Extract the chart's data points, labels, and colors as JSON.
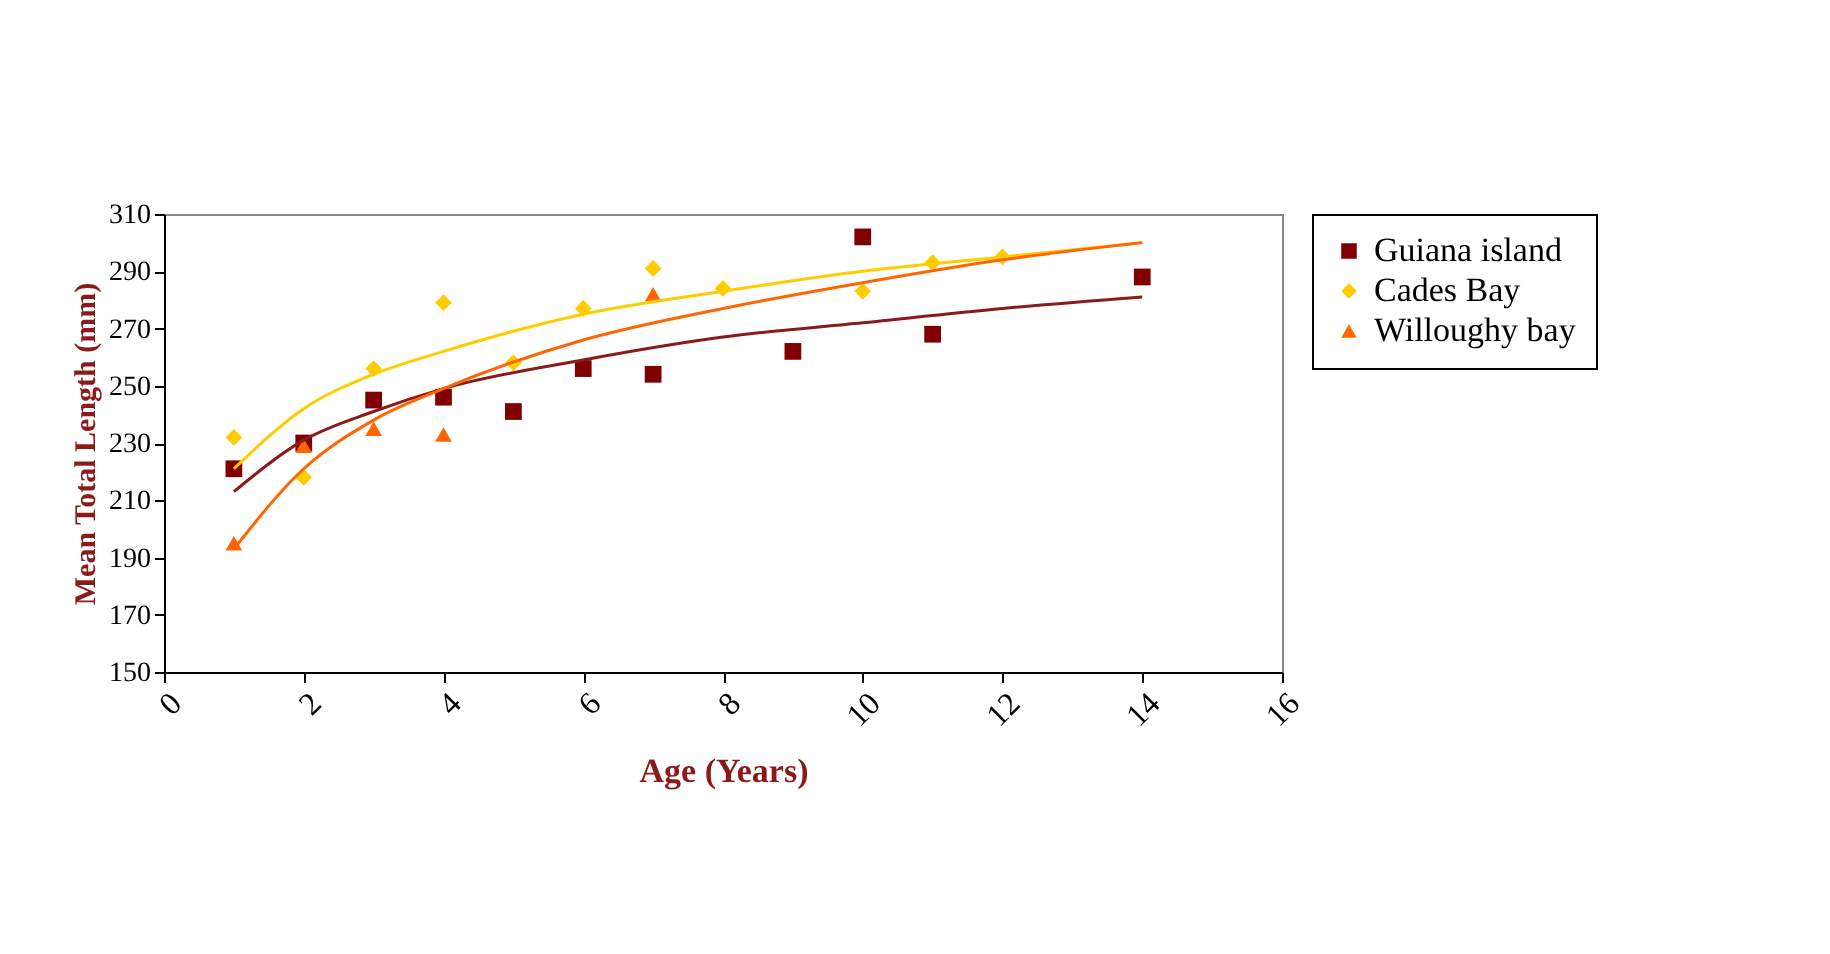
{
  "chart_data": {
    "type": "scatter",
    "xlabel": "Age (Years)",
    "ylabel": "Mean Total Length (mm)",
    "xlim": [
      0,
      16
    ],
    "xticks": [
      0,
      2,
      4,
      6,
      8,
      10,
      12,
      14,
      16
    ],
    "ylim": [
      150,
      310
    ],
    "yticks": [
      150,
      170,
      190,
      210,
      230,
      250,
      270,
      290,
      310
    ],
    "grid": false,
    "legend": "right",
    "series": [
      {
        "name": "Guiana island",
        "color": "#800000",
        "marker": "square",
        "x": [
          1,
          2,
          3,
          4,
          5,
          6,
          7,
          9,
          10,
          11,
          14
        ],
        "values": [
          221,
          230,
          245,
          246,
          241,
          256,
          254,
          262,
          302,
          268,
          288
        ]
      },
      {
        "name": "Cades Bay",
        "color": "#ffcc00",
        "marker": "diamond",
        "x": [
          1,
          2,
          3,
          4,
          5,
          6,
          7,
          8,
          10,
          11,
          12
        ],
        "values": [
          232,
          218,
          256,
          279,
          258,
          277,
          291,
          284,
          283,
          293,
          295
        ]
      },
      {
        "name": "Willoughy bay",
        "color": "#ff6600",
        "marker": "triangle",
        "x": [
          1,
          2,
          3,
          4,
          7
        ],
        "values": [
          195,
          229,
          235,
          233,
          282
        ]
      },
      {
        "type": "line",
        "color": "#8b1a1a",
        "x": [
          1,
          2,
          3,
          4,
          6,
          8,
          10,
          12,
          14
        ],
        "values": [
          213,
          231,
          241,
          249,
          259,
          267,
          272,
          277,
          281
        ]
      },
      {
        "type": "line",
        "color": "#ffcc00",
        "x": [
          1,
          2,
          3,
          4,
          6,
          8,
          10,
          12,
          14
        ],
        "values": [
          221,
          242,
          254,
          262,
          275,
          283,
          290,
          295,
          300
        ]
      },
      {
        "type": "line",
        "color": "#ff6600",
        "x": [
          1,
          2,
          3,
          4,
          6,
          8,
          10,
          12,
          14
        ],
        "values": [
          193,
          221,
          238,
          249,
          266,
          277,
          286,
          294,
          300
        ]
      }
    ]
  }
}
